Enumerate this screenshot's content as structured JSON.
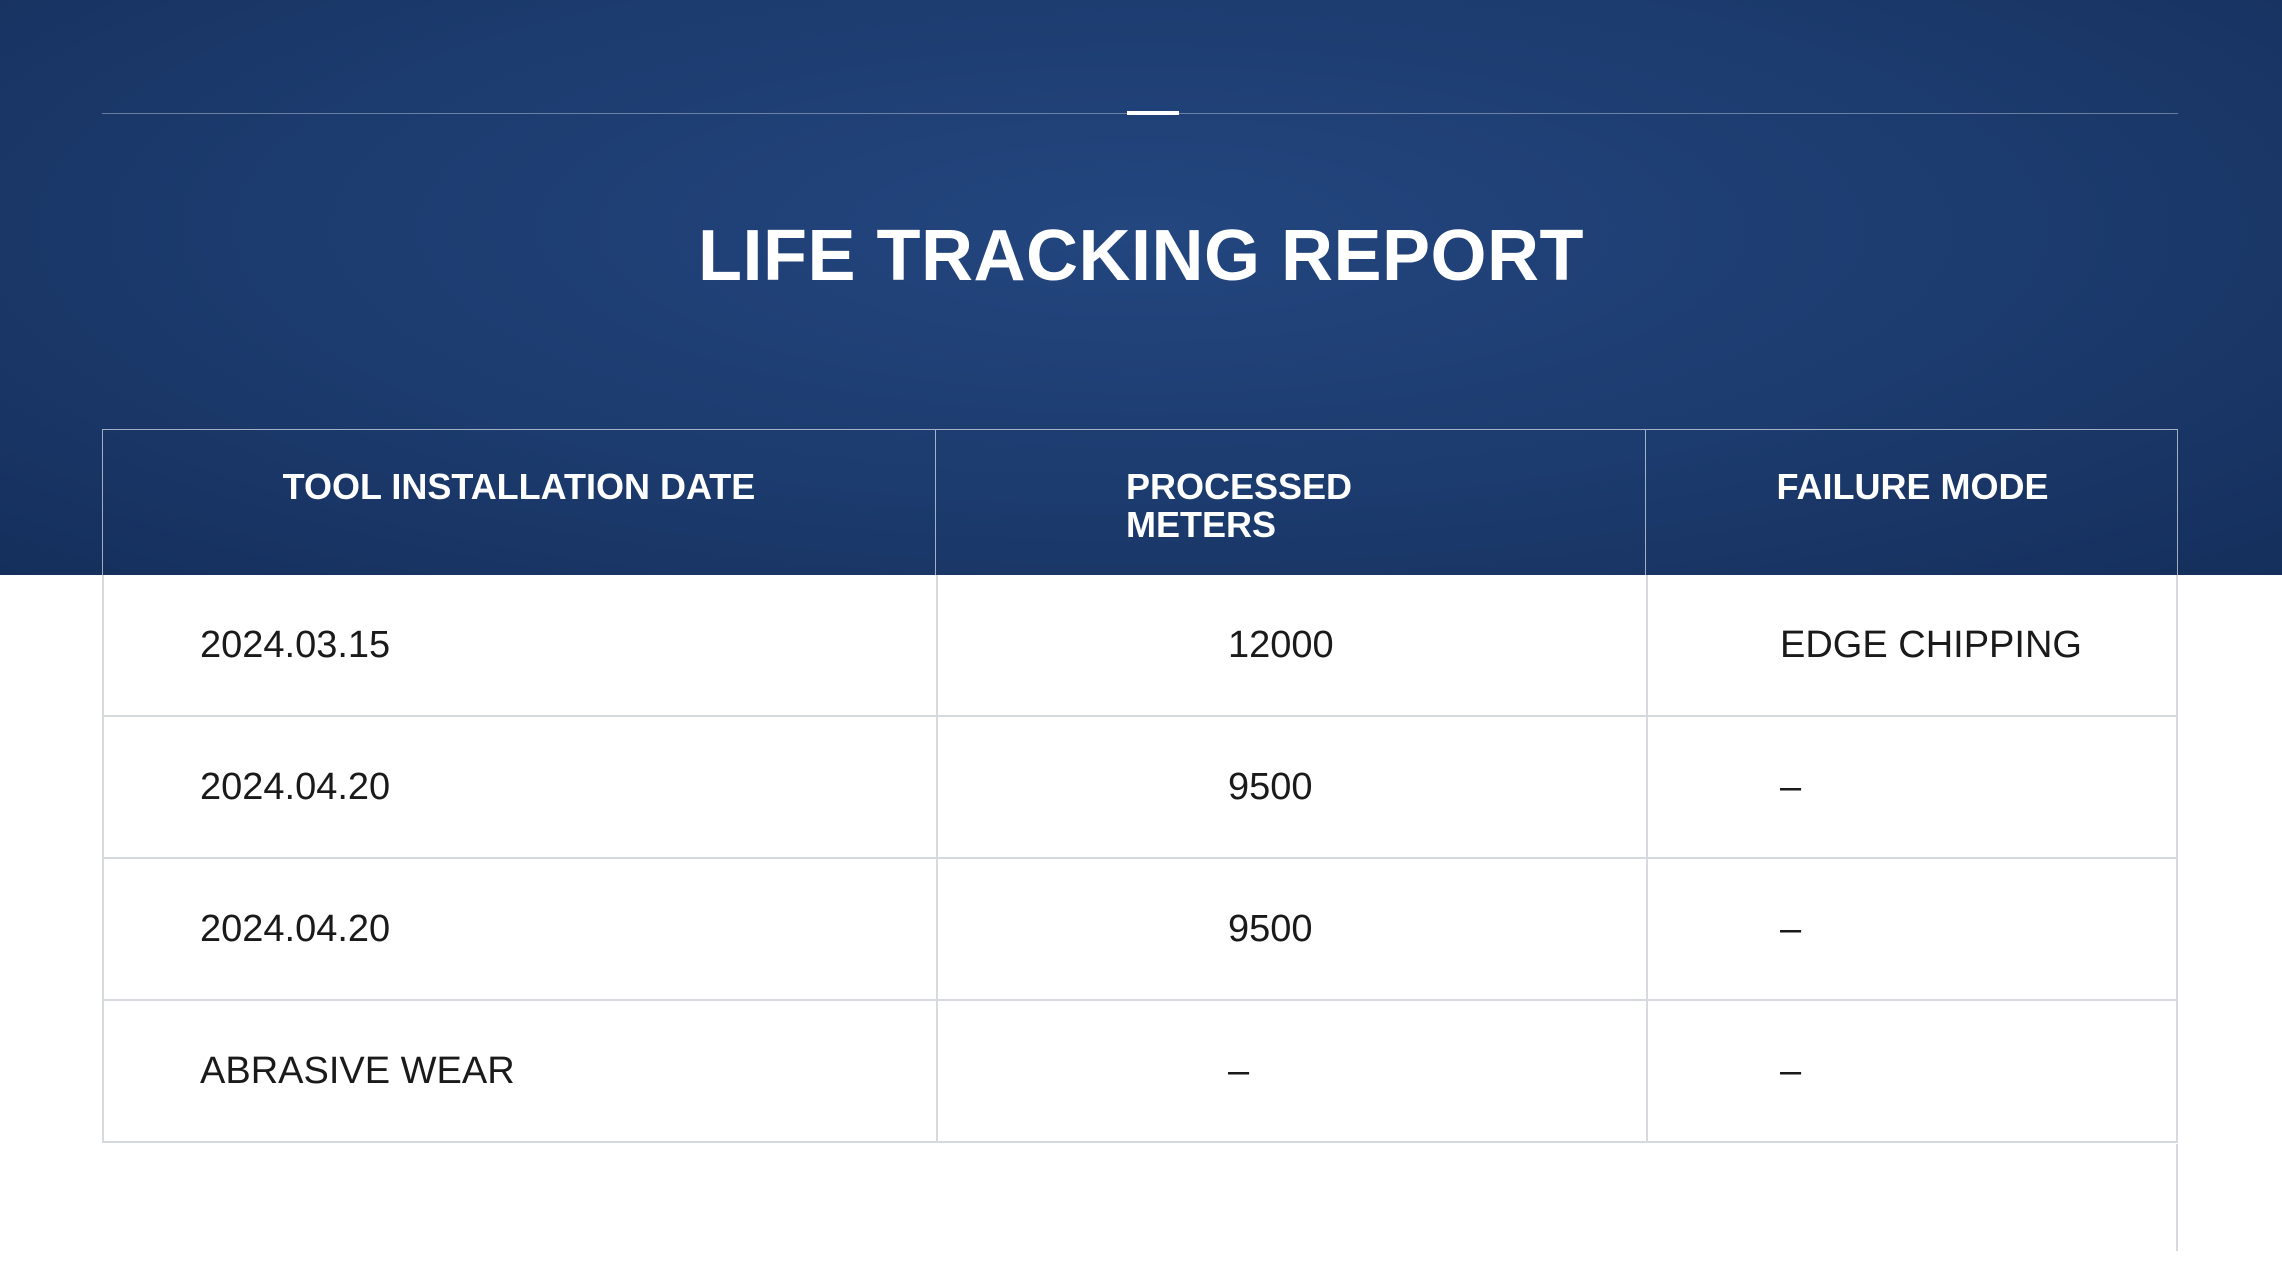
{
  "header": {
    "title": "LIFE TRACKING REPORT"
  },
  "table": {
    "columns": [
      "TOOL INSTALLATION DATE",
      "PROCESSED METERS",
      "FAILURE MODE"
    ],
    "rows": [
      [
        "2024.03.15",
        "12000",
        "EDGE CHIPPING"
      ],
      [
        "2024.04.20",
        "9500",
        "–"
      ],
      [
        "2024.04.20",
        "9500",
        "–"
      ],
      [
        "ABRASIVE WEAR",
        "–",
        "–"
      ]
    ]
  }
}
